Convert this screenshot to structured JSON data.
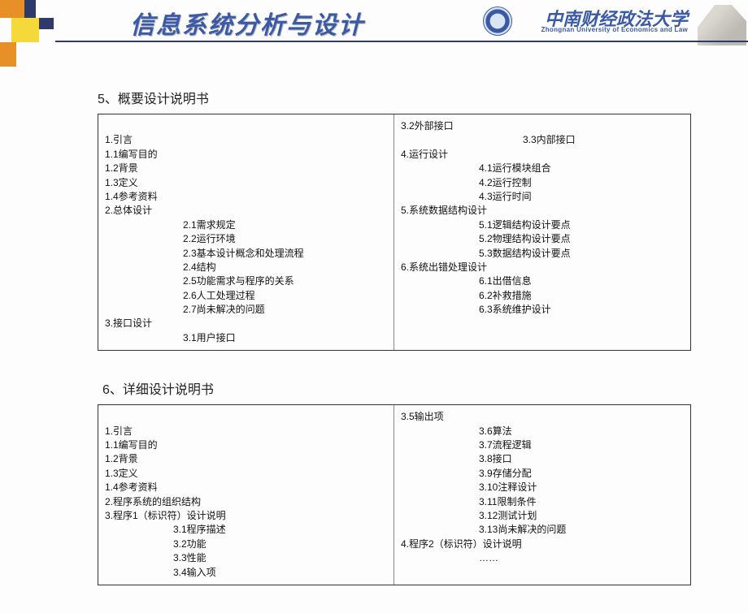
{
  "header": {
    "title": "信息系统分析与设计",
    "university_cn": "中南财经政法大学",
    "university_en": "Zhongnan University of Economics and Law"
  },
  "colors": {
    "orange": "#e89028",
    "navy": "#2d3a6a",
    "yellow": "#f5d93a",
    "title_blue": "#3a5aa8",
    "border": "#333333",
    "text": "#111111",
    "background": "#fdfdfd"
  },
  "section5": {
    "heading": "5、概要设计说明书",
    "left": [
      {
        "t": "",
        "lvl": 0
      },
      {
        "t": "1.引言",
        "lvl": 0
      },
      {
        "t": "1.1编写目的",
        "lvl": 0
      },
      {
        "t": "1.2背景",
        "lvl": 0
      },
      {
        "t": "1.3定义",
        "lvl": 0
      },
      {
        "t": "1.4参考资料",
        "lvl": 0
      },
      {
        "t": "2.总体设计",
        "lvl": 0
      },
      {
        "t": "2.1需求规定",
        "lvl": 1
      },
      {
        "t": "2.2运行环境",
        "lvl": 1
      },
      {
        "t": "2.3基本设计概念和处理流程",
        "lvl": 1
      },
      {
        "t": "2.4结构",
        "lvl": 1
      },
      {
        "t": "2.5功能需求与程序的关系",
        "lvl": 1
      },
      {
        "t": "2.6人工处理过程",
        "lvl": 1
      },
      {
        "t": "2.7尚未解决的问题",
        "lvl": 1
      },
      {
        "t": "3.接口设计",
        "lvl": 0
      },
      {
        "t": "3.1用户接口",
        "lvl": 1
      }
    ],
    "right": [
      {
        "t": "3.2外部接口",
        "lvl": 0
      },
      {
        "t": "3.3内部接口",
        "lvl": 2
      },
      {
        "t": "4.运行设计",
        "lvl": 0
      },
      {
        "t": "4.1运行模块组合",
        "lvl": 1
      },
      {
        "t": "4.2运行控制",
        "lvl": 1
      },
      {
        "t": "4.3运行时间",
        "lvl": 1
      },
      {
        "t": "5.系统数据结构设计",
        "lvl": 0
      },
      {
        "t": "5.1逻辑结构设计要点",
        "lvl": 1
      },
      {
        "t": "5.2物理结构设计要点",
        "lvl": 1
      },
      {
        "t": "5.3数据结构设计要点",
        "lvl": 1
      },
      {
        "t": "6.系统出错处理设计",
        "lvl": 0
      },
      {
        "t": "6.1出借信息",
        "lvl": 1
      },
      {
        "t": "6.2补救措施",
        "lvl": 1
      },
      {
        "t": "6.3系统维护设计",
        "lvl": 1
      }
    ]
  },
  "section6": {
    "heading": "6、详细设计说明书",
    "left": [
      {
        "t": "",
        "lvl": 0
      },
      {
        "t": "1.引言",
        "lvl": 0
      },
      {
        "t": "1.1编写目的",
        "lvl": 0
      },
      {
        "t": "1.2背景",
        "lvl": 0
      },
      {
        "t": "1.3定义",
        "lvl": 0
      },
      {
        "t": "1.4参考资料",
        "lvl": 0
      },
      {
        "t": "2.程序系统的组织结构",
        "lvl": 0
      },
      {
        "t": "3.程序1（标识符）设计说明",
        "lvl": 0
      },
      {
        "t": "3.1程序描述",
        "lvl": 2
      },
      {
        "t": "3.2功能",
        "lvl": 2
      },
      {
        "t": "3.3性能",
        "lvl": 2
      },
      {
        "t": "3.4输入项",
        "lvl": 2
      }
    ],
    "right": [
      {
        "t": "3.5输出项",
        "lvl": 0
      },
      {
        "t": "3.6算法",
        "lvl": 1
      },
      {
        "t": "3.7流程逻辑",
        "lvl": 1
      },
      {
        "t": "3.8接口",
        "lvl": 1
      },
      {
        "t": "3.9存储分配",
        "lvl": 1
      },
      {
        "t": "3.10注释设计",
        "lvl": 1
      },
      {
        "t": "3.11限制条件",
        "lvl": 1
      },
      {
        "t": "3.12测试计划",
        "lvl": 1
      },
      {
        "t": "3.13尚未解决的问题",
        "lvl": 1
      },
      {
        "t": "4.程序2（标识符）设计说明",
        "lvl": 0
      },
      {
        "t": "……",
        "lvl": 1
      }
    ]
  }
}
